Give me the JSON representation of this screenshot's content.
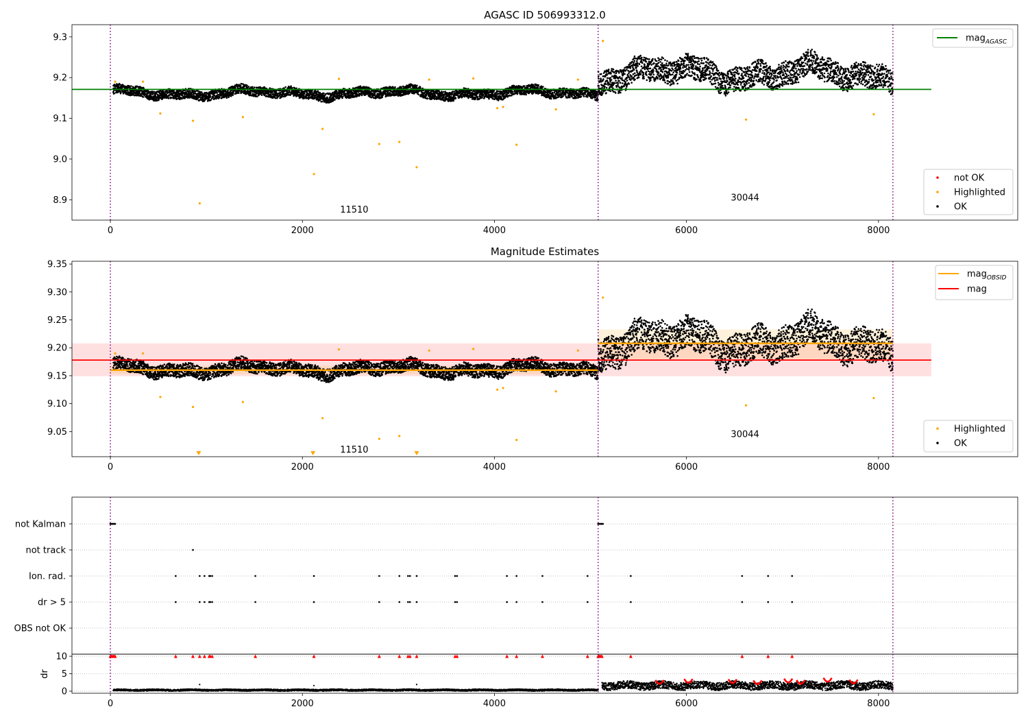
{
  "colors": {
    "ok": "#000000",
    "highlighted": "#ffa500",
    "not_ok": "#ff0000",
    "mag_agasc": "#008000",
    "mag_obsid": "#ffa500",
    "mag": "#ff0000",
    "obsid_boundary": "#800080"
  },
  "chart_data": [
    {
      "type": "scatter",
      "title": "AGASC ID 506993312.0",
      "xlim": [
        -400,
        9450
      ],
      "ylim": [
        8.85,
        9.33
      ],
      "x_ticks": [
        0,
        2000,
        4000,
        6000,
        8000
      ],
      "x_tick_labels": [
        "0",
        "2000",
        "4000",
        "6000",
        "8000"
      ],
      "y_ticks": [
        8.9,
        9.0,
        9.1,
        9.2,
        9.3
      ],
      "y_tick_labels": [
        "8.9",
        "9.0",
        "9.1",
        "9.2",
        "9.3"
      ],
      "obsid_boundaries": [
        0,
        5080,
        8150
      ],
      "obsid_labels": [
        {
          "text": "11510",
          "x": 2540,
          "y": 8.875
        },
        {
          "text": "30044",
          "x": 6610,
          "y": 8.905
        }
      ],
      "lines": [
        {
          "name": "mag",
          "subscript": "AGASC",
          "y": 9.171,
          "x": [
            -400,
            8550
          ],
          "color": "#008000"
        }
      ],
      "segments": [
        {
          "x": [
            30,
            5080
          ],
          "mean": 9.162,
          "amp": 0.018
        },
        {
          "x": [
            5080,
            8150
          ],
          "mean": 9.21,
          "amp": 0.045
        }
      ],
      "highlighted_points": [
        {
          "x": 50,
          "y": 9.19
        },
        {
          "x": 340,
          "y": 9.19
        },
        {
          "x": 520,
          "y": 9.112
        },
        {
          "x": 860,
          "y": 9.094
        },
        {
          "x": 930,
          "y": 8.891
        },
        {
          "x": 1380,
          "y": 9.103
        },
        {
          "x": 2120,
          "y": 8.963
        },
        {
          "x": 2210,
          "y": 9.074
        },
        {
          "x": 2380,
          "y": 9.197
        },
        {
          "x": 2800,
          "y": 9.037
        },
        {
          "x": 3010,
          "y": 9.042
        },
        {
          "x": 3190,
          "y": 8.98
        },
        {
          "x": 3320,
          "y": 9.195
        },
        {
          "x": 3780,
          "y": 9.198
        },
        {
          "x": 4030,
          "y": 9.125
        },
        {
          "x": 4090,
          "y": 9.128
        },
        {
          "x": 4230,
          "y": 9.035
        },
        {
          "x": 4640,
          "y": 9.122
        },
        {
          "x": 4870,
          "y": 9.195
        },
        {
          "x": 5130,
          "y": 9.29
        },
        {
          "x": 6620,
          "y": 9.097
        },
        {
          "x": 7950,
          "y": 9.11
        }
      ],
      "legend_upper": {
        "position": "upper right",
        "entries": [
          {
            "label": "mag",
            "subscript": "AGASC",
            "color": "#008000"
          }
        ]
      },
      "legend_lower": {
        "position": "lower right",
        "entries": [
          {
            "label": "not OK",
            "color": "#ff0000"
          },
          {
            "label": "Highlighted",
            "color": "#ffa500"
          },
          {
            "label": "OK",
            "color": "#000000"
          }
        ]
      }
    },
    {
      "type": "scatter",
      "title": "Magnitude Estimates",
      "xlim": [
        -400,
        9450
      ],
      "ylim": [
        9.005,
        9.355
      ],
      "x_ticks": [
        0,
        2000,
        4000,
        6000,
        8000
      ],
      "x_tick_labels": [
        "0",
        "2000",
        "4000",
        "6000",
        "8000"
      ],
      "y_ticks": [
        9.05,
        9.1,
        9.15,
        9.2,
        9.25,
        9.3,
        9.35
      ],
      "y_tick_labels": [
        "9.05",
        "9.10",
        "9.15",
        "9.20",
        "9.25",
        "9.30",
        "9.35"
      ],
      "obsid_boundaries": [
        0,
        5080,
        8150
      ],
      "obsid_labels": [
        {
          "text": "11510",
          "x": 2540,
          "y": 9.017
        },
        {
          "text": "30044",
          "x": 6610,
          "y": 9.045
        }
      ],
      "mag": {
        "y": 9.178,
        "band": [
          9.149,
          9.208
        ],
        "x": [
          -400,
          8550
        ],
        "color": "#ff0000"
      },
      "mag_obsid": [
        {
          "x": [
            0,
            5080
          ],
          "y": 9.16,
          "band": [
            9.153,
            9.168
          ]
        },
        {
          "x": [
            5080,
            8150
          ],
          "y": 9.208,
          "band": [
            9.18,
            9.233
          ]
        }
      ],
      "segments": [
        {
          "x": [
            30,
            5080
          ],
          "mean": 9.162,
          "amp": 0.018
        },
        {
          "x": [
            5080,
            8150
          ],
          "mean": 9.21,
          "amp": 0.045
        }
      ],
      "highlighted_points": [
        {
          "x": 50,
          "y": 9.19
        },
        {
          "x": 340,
          "y": 9.19
        },
        {
          "x": 520,
          "y": 9.112
        },
        {
          "x": 860,
          "y": 9.094
        },
        {
          "x": 1380,
          "y": 9.103
        },
        {
          "x": 2210,
          "y": 9.074
        },
        {
          "x": 2380,
          "y": 9.197
        },
        {
          "x": 2800,
          "y": 9.037
        },
        {
          "x": 3010,
          "y": 9.042
        },
        {
          "x": 3320,
          "y": 9.195
        },
        {
          "x": 3780,
          "y": 9.198
        },
        {
          "x": 4030,
          "y": 9.125
        },
        {
          "x": 4090,
          "y": 9.128
        },
        {
          "x": 4230,
          "y": 9.035
        },
        {
          "x": 4640,
          "y": 9.122
        },
        {
          "x": 4870,
          "y": 9.195
        },
        {
          "x": 5130,
          "y": 9.29
        },
        {
          "x": 6620,
          "y": 9.097
        },
        {
          "x": 7950,
          "y": 9.11
        }
      ],
      "offscale_markers": [
        920,
        2110,
        3190
      ],
      "legend_upper": {
        "position": "upper right",
        "entries": [
          {
            "label": "mag",
            "subscript": "OBSID",
            "color": "#ffa500"
          },
          {
            "label": "mag",
            "color": "#ff0000"
          }
        ]
      },
      "legend_lower": {
        "position": "lower right",
        "entries": [
          {
            "label": "Highlighted",
            "color": "#ffa500"
          },
          {
            "label": "OK",
            "color": "#000000"
          }
        ]
      }
    },
    {
      "type": "scatter",
      "title": "",
      "xlim": [
        -400,
        9450
      ],
      "flag_rows": [
        "not Kalman",
        "not track",
        "Ion. rad.",
        "dr > 5",
        "OBS not OK"
      ],
      "obsid_boundaries": [
        0,
        5080,
        8150
      ],
      "flags": {
        "not Kalman": [
          0,
          10,
          20,
          30,
          40,
          50,
          5080,
          5090,
          5100,
          5110,
          5120,
          5130
        ],
        "not track": [
          860
        ],
        "Ion. rad.": [
          680,
          930,
          980,
          1030,
          1040,
          1060,
          1510,
          2120,
          2800,
          3010,
          3100,
          3120,
          3190,
          3590,
          3610,
          4130,
          4230,
          4500,
          4970,
          5420,
          6580,
          6850,
          7100
        ],
        "dr > 5": [
          680,
          930,
          980,
          1030,
          1040,
          1060,
          1510,
          2120,
          2800,
          3010,
          3100,
          3120,
          3190,
          3590,
          3610,
          4130,
          4230,
          4500,
          4970,
          5420,
          6580,
          6850,
          7100
        ],
        "OBS not OK": []
      }
    },
    {
      "type": "scatter",
      "title": "",
      "ylabel": "dr",
      "xlim": [
        -400,
        9450
      ],
      "ylim": [
        -0.6,
        10.6
      ],
      "x_ticks": [
        0,
        2000,
        4000,
        6000,
        8000
      ],
      "x_tick_labels": [
        "0",
        "2000",
        "4000",
        "6000",
        "8000"
      ],
      "y_ticks": [
        0,
        5,
        10
      ],
      "y_tick_labels": [
        "0",
        "5",
        "10"
      ],
      "obsid_boundaries": [
        0,
        5080,
        8150
      ],
      "segments": [
        {
          "x": [
            30,
            5080
          ],
          "mean": 0.3,
          "amp": 0.25
        },
        {
          "x": [
            5120,
            8150
          ],
          "mean": 1.6,
          "amp": 1.1
        }
      ],
      "outliers_at_10": [
        0,
        10,
        20,
        30,
        40,
        50,
        680,
        860,
        930,
        980,
        1030,
        1040,
        1060,
        1510,
        2120,
        2800,
        3010,
        3100,
        3120,
        3190,
        3590,
        3610,
        4130,
        4230,
        4500,
        4970,
        5080,
        5090,
        5100,
        5110,
        5120,
        5420,
        6580,
        6850,
        7100
      ],
      "red_arcs": [
        {
          "x": 6020,
          "y": 3.1
        },
        {
          "x": 6480,
          "y": 3.0
        },
        {
          "x": 7060,
          "y": 3.2
        },
        {
          "x": 7470,
          "y": 3.4
        },
        {
          "x": 5720,
          "y": 2.8
        },
        {
          "x": 6740,
          "y": 2.7
        },
        {
          "x": 7190,
          "y": 2.8
        },
        {
          "x": 7740,
          "y": 2.9
        }
      ]
    }
  ]
}
